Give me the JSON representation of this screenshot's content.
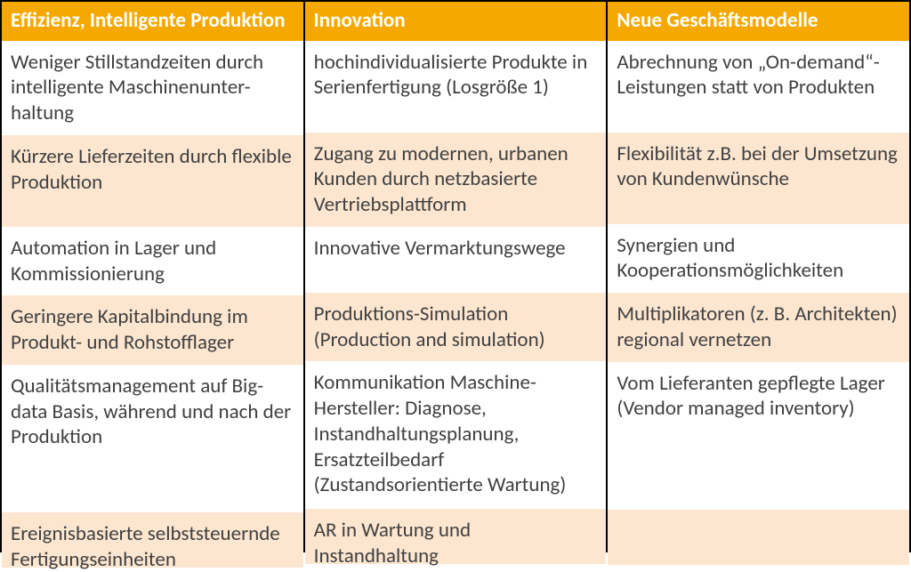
{
  "table": {
    "type": "table",
    "background_color": "#ffffff",
    "header_bg": "#f5a800",
    "header_fg": "#ffffff",
    "row_even_bg": "#ffffff",
    "row_odd_bg": "#fce6d0",
    "cell_fg": "#404040",
    "border_color": "#000000",
    "fontsize": 23,
    "header_fontsize": 23,
    "columns": [
      {
        "id": "col-efficiency",
        "header": "Effizienz, Intelligente Produktion"
      },
      {
        "id": "col-innovation",
        "header": "Innovation"
      },
      {
        "id": "col-business",
        "header": "Neue Geschäftsmodelle"
      }
    ],
    "rows": [
      [
        "Weniger Stillstandzeiten durch intelligente Maschinenunter-haltung",
        "hochindividualisierte Produkte in Serienfertigung (Losgröße 1)",
        "Abrechnung von „On-demand“-Leistungen statt von Produkten"
      ],
      [
        "Kürzere Lieferzeiten durch flexible Produktion",
        "Zugang zu modernen, urbanen Kunden durch netzbasierte Vertriebsplattform",
        "Flexibilität z.B. bei der Umsetzung von Kundenwünsche"
      ],
      [
        "Automation in Lager und Kommissionierung",
        "Innovative Vermarktungswege",
        "Synergien und Kooperationsmöglichkeiten"
      ],
      [
        "Geringere Kapitalbindung im Produkt- und Rohstofflager",
        "Produktions-Simulation (Production and simulation)",
        "Multiplikatoren (z. B. Architekten) regional vernetzen"
      ],
      [
        "Qualitätsmanagement auf Big-data Basis, während und nach der Produktion",
        "Kommunikation Maschine-Hersteller: Diagnose, Instandhaltungsplanung, Ersatzteilbedarf (Zustandsorientierte Wartung)",
        "Vom Lieferanten gepflegte Lager (Vendor managed inventory)"
      ],
      [
        "Ereignisbasierte selbststeuernde Fertigungseinheiten",
        "AR in Wartung und Instandhaltung",
        ""
      ]
    ]
  }
}
